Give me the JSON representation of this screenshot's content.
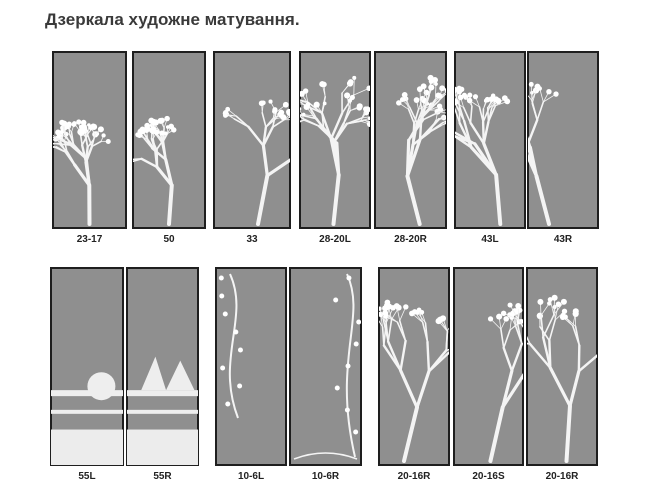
{
  "title": "Дзеркала художне матування.",
  "rows": [
    {
      "panels": [
        {
          "label": "23-17"
        },
        {
          "label": "50"
        },
        {
          "label": "33"
        },
        {
          "label": "28-20L"
        },
        {
          "label": "28-20R"
        },
        {
          "label": "43L"
        },
        {
          "label": "43R"
        }
      ]
    },
    {
      "panels": [
        {
          "label": "55L"
        },
        {
          "label": "55R"
        },
        {
          "label": "10-6L"
        },
        {
          "label": "10-6R"
        },
        {
          "label": "20-16R"
        },
        {
          "label": "20-16S"
        },
        {
          "label": "20-16R"
        }
      ]
    }
  ]
}
